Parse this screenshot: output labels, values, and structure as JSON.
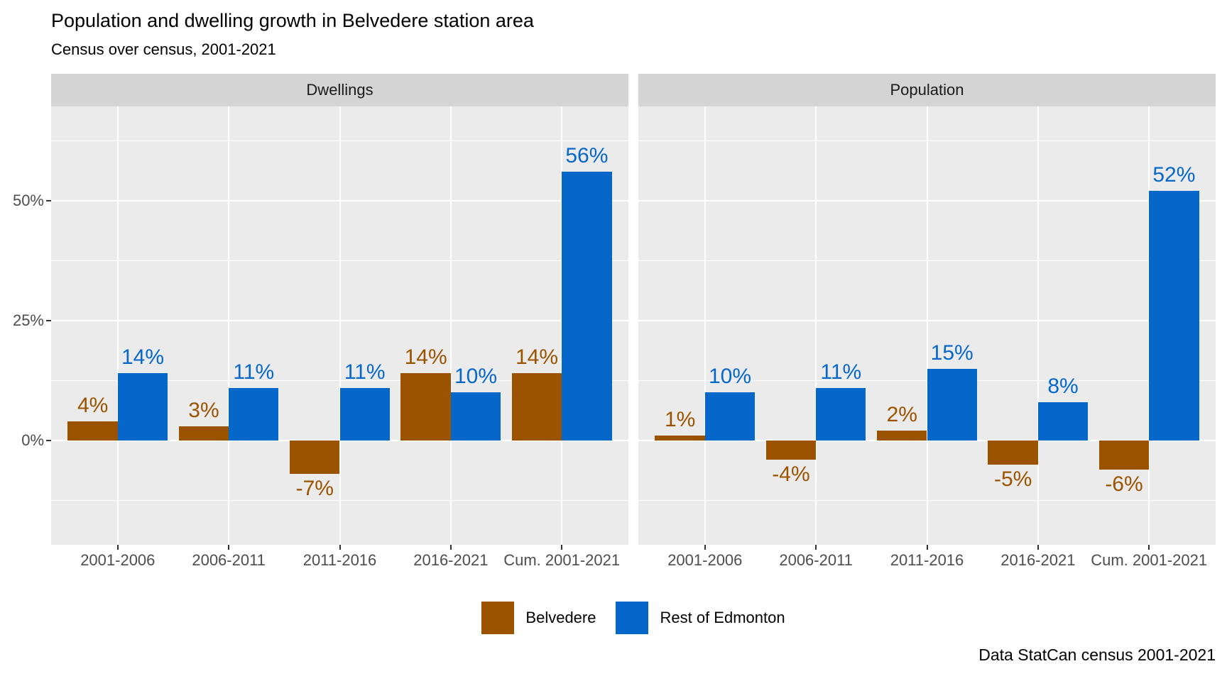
{
  "header": {
    "title": "Population and dwelling growth in Belvedere station area",
    "subtitle": "Census over census, 2001-2021"
  },
  "caption": "Data StatCan census 2001-2021",
  "colors": {
    "belvedere": "#9B5300",
    "rest_of_edmonton": "#0667CB",
    "panel_background": "#EBEBEB",
    "strip_background": "#D4D4D4",
    "gridline": "#FFFFFF",
    "axis_text": "#4D4D4D",
    "tick_mark": "#333333"
  },
  "legend": {
    "items": [
      {
        "label": "Belvedere",
        "color": "#9B5300"
      },
      {
        "label": "Rest of Edmonton",
        "color": "#0667CB"
      }
    ]
  },
  "chart_data": {
    "type": "bar",
    "grouped": true,
    "title": "Population and dwelling growth in Belvedere station area",
    "subtitle": "Census over census, 2001-2021",
    "caption": "Data StatCan census 2001-2021",
    "xlabel": "",
    "ylabel": "",
    "categories": [
      "2001-2006",
      "2006-2011",
      "2011-2016",
      "2016-2021",
      "Cum. 2001-2021"
    ],
    "facets": [
      {
        "title": "Dwellings",
        "series": [
          {
            "name": "Belvedere",
            "color": "#9B5300",
            "values": [
              4,
              3,
              -7,
              14,
              14
            ]
          },
          {
            "name": "Rest of Edmonton",
            "color": "#0667CB",
            "values": [
              14,
              11,
              11,
              10,
              56
            ]
          }
        ]
      },
      {
        "title": "Population",
        "series": [
          {
            "name": "Belvedere",
            "color": "#9B5300",
            "values": [
              1,
              -4,
              2,
              -5,
              -6
            ]
          },
          {
            "name": "Rest of Edmonton",
            "color": "#0667CB",
            "values": [
              10,
              11,
              15,
              8,
              52
            ]
          }
        ]
      }
    ],
    "value_labels": {
      "Dwellings": {
        "Belvedere": [
          "4%",
          "3%",
          "-7%",
          "14%",
          "14%"
        ],
        "Rest of Edmonton": [
          "14%",
          "11%",
          "11%",
          "10%",
          "56%"
        ]
      },
      "Population": {
        "Belvedere": [
          "1%",
          "-4%",
          "2%",
          "-5%",
          "-6%"
        ],
        "Rest of Edmonton": [
          "10%",
          "11%",
          "15%",
          "8%",
          "52%"
        ]
      }
    },
    "y_ticks": [
      {
        "value": 0,
        "label": "0%"
      },
      {
        "value": 25,
        "label": "25%"
      },
      {
        "value": 50,
        "label": "50%"
      }
    ],
    "y_minor_ticks": [
      -12.5,
      12.5,
      37.5,
      62.5
    ],
    "ylim": [
      -21.7,
      69.7
    ],
    "bar_label_suffix": "%",
    "grid": true,
    "legend_position": "bottom"
  }
}
